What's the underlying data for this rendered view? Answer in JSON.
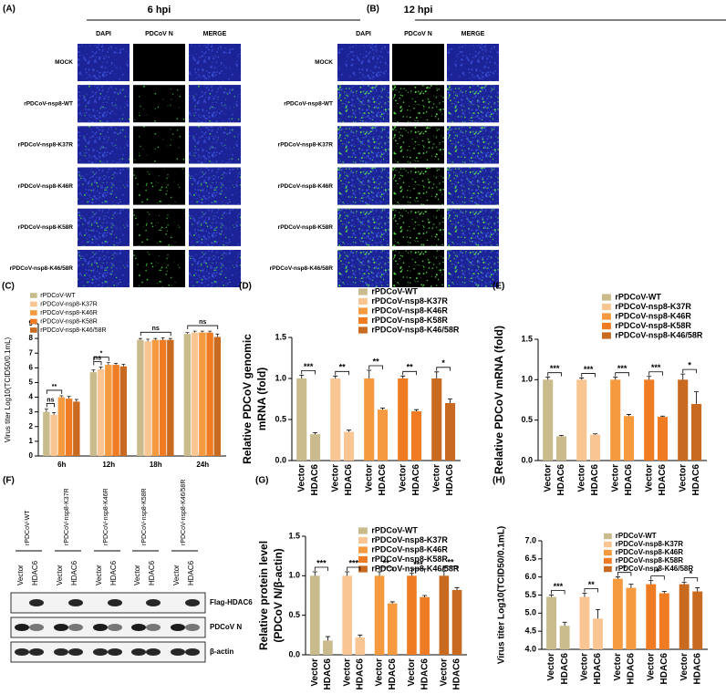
{
  "panel_a": {
    "label": "(A)",
    "title": "6 hpi",
    "columns": [
      "DAPI",
      "PDCoV N",
      "MERGE"
    ],
    "rows": [
      "MOCK",
      "rPDCoV-nsp8-WT",
      "rPDCoV-nsp8-K37R",
      "rPDCoV-nsp8-K46R",
      "rPDCoV-nsp8-K58R",
      "rPDCoV-nsp8-K46/58R"
    ]
  },
  "panel_b": {
    "label": "(B)",
    "title": "12 hpi",
    "columns": [
      "DAPI",
      "PDCoV N",
      "MERGE"
    ],
    "rows": [
      "MOCK",
      "rPDCoV-nsp8-WT",
      "rPDCoV-nsp8-K37R",
      "rPDCoV-nsp8-K46R",
      "rPDCoV-nsp8-K58R",
      "rPDCoV-nsp8-K46/58R"
    ]
  },
  "panel_f": {
    "label": "(F)",
    "lanes": [
      "rPDCoV-WT",
      "rPDCoV-nsp8-K37R",
      "rPDCoV-nsp8-K46R",
      "rPDCoV-nsp8-K58R",
      "rPDCoV-nsp8-K46/58R"
    ],
    "treatments": [
      "Vector",
      "HDAC6"
    ],
    "bands": [
      "Flag-HDAC6",
      "PDCoV N",
      "β-actin"
    ]
  },
  "chart_data": [
    {
      "type": "bar",
      "panel": "(C)",
      "y_label": [
        "Virus titer Log10(TCID50/0.1mL)"
      ],
      "categories": [
        "6h",
        "12h",
        "18h",
        "24h"
      ],
      "ylim": [
        0,
        9
      ],
      "yticks": [
        0,
        1,
        2,
        3,
        4,
        5,
        6,
        7,
        8,
        9
      ],
      "series": [
        {
          "name": "rPDCoV-WT",
          "color": "#c9bb8b",
          "values": [
            3.0,
            5.7,
            7.9,
            8.3
          ],
          "errors": [
            0.2,
            0.15,
            0.1,
            0.1
          ]
        },
        {
          "name": "rPDCoV-nsp8-K37R",
          "color": "#f9c693",
          "values": [
            2.8,
            5.9,
            7.8,
            8.4
          ],
          "errors": [
            0.15,
            0.15,
            0.15,
            0.1
          ]
        },
        {
          "name": "rPDCoV-nsp8-K46R",
          "color": "#f59a3e",
          "values": [
            4.0,
            6.2,
            7.9,
            8.4
          ],
          "errors": [
            0.1,
            0.15,
            0.1,
            0.1
          ]
        },
        {
          "name": "rPDCoV-nsp8-K58R",
          "color": "#ef7b22",
          "values": [
            3.9,
            6.2,
            7.9,
            8.4
          ],
          "errors": [
            0.15,
            0.1,
            0.15,
            0.1
          ]
        },
        {
          "name": "rPDCoV-nsp8-K46/58R",
          "color": "#c96a21",
          "values": [
            3.7,
            6.1,
            7.9,
            8.1
          ],
          "errors": [
            0.15,
            0.15,
            0.1,
            0.2
          ]
        }
      ],
      "annotations": [
        {
          "text": "**",
          "category": "6h",
          "from": "rPDCoV-WT",
          "to": "rPDCoV-nsp8-K46R"
        },
        {
          "text": "ns",
          "category": "6h",
          "from": "rPDCoV-WT",
          "to": "rPDCoV-nsp8-K37R"
        },
        {
          "text": "*",
          "category": "12h",
          "from": "rPDCoV-WT",
          "to": "rPDCoV-nsp8-K46R"
        },
        {
          "text": "ns",
          "category": "12h",
          "from": "rPDCoV-WT",
          "to": "rPDCoV-nsp8-K37R"
        },
        {
          "text": "ns",
          "category": "18h",
          "from": "rPDCoV-WT",
          "to": "rPDCoV-nsp8-K46/58R"
        },
        {
          "text": "ns",
          "category": "24h",
          "from": "rPDCoV-WT",
          "to": "rPDCoV-nsp8-K46/58R"
        }
      ]
    },
    {
      "type": "paired",
      "panel": "(D)",
      "y_label": [
        "Relative PDCoV genomic",
        "mRNA (fold)"
      ],
      "categories": [
        "Vector",
        "HDAC6"
      ],
      "ylim": [
        0,
        1.5
      ],
      "yticks": [
        {
          "value": 0,
          "label": "0.0"
        },
        0.5,
        {
          "value": 1,
          "label": "1.0"
        },
        1.5
      ],
      "series": [
        {
          "name": "rPDCoV-WT",
          "color": "#c9bb8b",
          "values": [
            1.0,
            0.32
          ],
          "errors": [
            0.04,
            0.02
          ]
        },
        {
          "name": "rPDCoV-nsp8-K37R",
          "color": "#f9c693",
          "values": [
            1.0,
            0.35
          ],
          "errors": [
            0.03,
            0.02
          ]
        },
        {
          "name": "rPDCoV-nsp8-K46R",
          "color": "#f59a3e",
          "values": [
            1.0,
            0.62
          ],
          "errors": [
            0.1,
            0.02
          ]
        },
        {
          "name": "rPDCoV-nsp8-K58R",
          "color": "#ef7b22",
          "values": [
            1.0,
            0.6
          ],
          "errors": [
            0.03,
            0.02
          ]
        },
        {
          "name": "rPDCoV-nsp8-K46/58R",
          "color": "#c96a21",
          "values": [
            1.0,
            0.7
          ],
          "errors": [
            0.08,
            0.05
          ]
        }
      ],
      "significance": [
        "***",
        "**",
        "**",
        "**",
        "*"
      ]
    },
    {
      "type": "paired",
      "panel": "(E)",
      "y_label": [
        "Relative PDCoV mRNA (fold)"
      ],
      "categories": [
        "Vector",
        "HDAC6"
      ],
      "ylim": [
        0,
        1.5
      ],
      "yticks": [
        {
          "value": 0,
          "label": "0.0"
        },
        0.5,
        {
          "value": 1,
          "label": "1.0"
        },
        1.5
      ],
      "series": [
        {
          "name": "rPDCoV-WT",
          "color": "#c9bb8b",
          "values": [
            1.0,
            0.3
          ],
          "errors": [
            0.03,
            0.01
          ]
        },
        {
          "name": "rPDCoV-nsp8-K37R",
          "color": "#f9c693",
          "values": [
            1.0,
            0.32
          ],
          "errors": [
            0.02,
            0.01
          ]
        },
        {
          "name": "rPDCoV-nsp8-K46R",
          "color": "#f59a3e",
          "values": [
            1.0,
            0.55
          ],
          "errors": [
            0.03,
            0.02
          ]
        },
        {
          "name": "rPDCoV-nsp8-K58R",
          "color": "#ef7b22",
          "values": [
            1.0,
            0.54
          ],
          "errors": [
            0.04,
            0.01
          ]
        },
        {
          "name": "rPDCoV-nsp8-K46/58R",
          "color": "#c96a21",
          "values": [
            1.0,
            0.7
          ],
          "errors": [
            0.07,
            0.15
          ]
        }
      ],
      "significance": [
        "***",
        "***",
        "***",
        "***",
        "*"
      ]
    },
    {
      "type": "paired",
      "panel": "(G)",
      "y_label": [
        "Relative protein level",
        "(PDCoV N/β-actin)"
      ],
      "categories": [
        "Vector",
        "HDAC6"
      ],
      "ylim": [
        0,
        1.5
      ],
      "yticks": [
        {
          "value": 0,
          "label": "0.0"
        },
        0.5,
        {
          "value": 1,
          "label": "1.0"
        },
        1.5
      ],
      "series": [
        {
          "name": "rPDCoV-WT",
          "color": "#c9bb8b",
          "values": [
            1.0,
            0.18
          ],
          "errors": [
            0.05,
            0.05
          ]
        },
        {
          "name": "rPDCoV-nsp8-K37R",
          "color": "#f9c693",
          "values": [
            1.0,
            0.22
          ],
          "errors": [
            0.05,
            0.03
          ]
        },
        {
          "name": "rPDCoV-nsp8-K46R",
          "color": "#f59a3e",
          "values": [
            1.0,
            0.65
          ],
          "errors": [
            0.05,
            0.02
          ]
        },
        {
          "name": "rPDCoV-nsp8-K58R",
          "color": "#ef7b22",
          "values": [
            1.0,
            0.73
          ],
          "errors": [
            0.03,
            0.02
          ]
        },
        {
          "name": "rPDCoV-nsp8-K46/58R",
          "color": "#c96a21",
          "values": [
            1.0,
            0.82
          ],
          "errors": [
            0.06,
            0.03
          ]
        }
      ],
      "significance": [
        "***",
        "***",
        "**",
        "***",
        "**"
      ]
    },
    {
      "type": "paired",
      "panel": "(H)",
      "y_label": [
        "Virus titer Log10(TCID50/0.1mL)"
      ],
      "categories": [
        "Vector",
        "HDAC6"
      ],
      "ylim": [
        4,
        7
      ],
      "yticks": [
        {
          "value": 4,
          "label": "4.0"
        },
        4.5,
        {
          "value": 5,
          "label": "5.0"
        },
        5.5,
        {
          "value": 6,
          "label": "6.0"
        },
        6.5,
        {
          "value": 7,
          "label": "7.0"
        }
      ],
      "series": [
        {
          "name": "rPDCoV-WT",
          "color": "#c9bb8b",
          "values": [
            5.45,
            4.65
          ],
          "errors": [
            0.05,
            0.1
          ]
        },
        {
          "name": "rPDCoV-nsp8-K37R",
          "color": "#f9c693",
          "values": [
            5.45,
            4.85
          ],
          "errors": [
            0.1,
            0.25
          ]
        },
        {
          "name": "rPDCoV-nsp8-K46R",
          "color": "#f59a3e",
          "values": [
            5.95,
            5.7
          ],
          "errors": [
            0.05,
            0.1
          ]
        },
        {
          "name": "rPDCoV-nsp8-K58R",
          "color": "#ef7b22",
          "values": [
            5.8,
            5.55
          ],
          "errors": [
            0.1,
            0.05
          ]
        },
        {
          "name": "rPDCoV-nsp8-K46/58R",
          "color": "#c96a21",
          "values": [
            5.8,
            5.6
          ],
          "errors": [
            0.05,
            0.1
          ]
        }
      ],
      "significance": [
        "***",
        "**",
        "*",
        "*",
        "*"
      ]
    }
  ]
}
